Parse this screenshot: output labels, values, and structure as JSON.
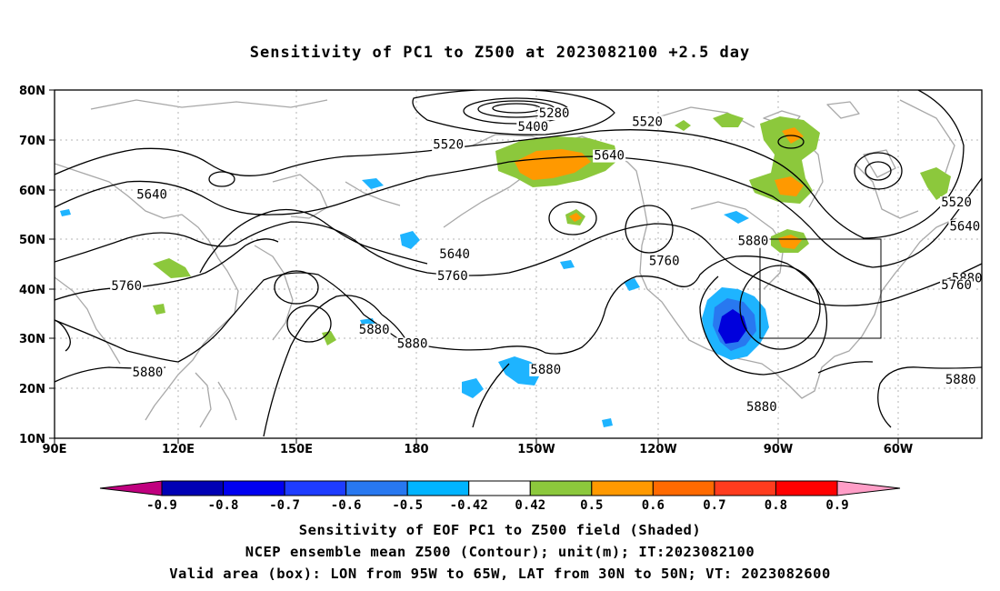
{
  "title": "Sensitivity of PC1 to Z500 at 2023082100 +2.5 day",
  "lat_labels": [
    "80N",
    "70N",
    "60N",
    "50N",
    "40N",
    "30N",
    "20N",
    "10N"
  ],
  "lon_labels": [
    "90E",
    "120E",
    "150E",
    "180",
    "150W",
    "120W",
    "90W",
    "60W"
  ],
  "contour_labels": [
    {
      "text": "5280",
      "lon": -152,
      "lat": 74.5
    },
    {
      "text": "5400",
      "lon": -157,
      "lat": 71.8
    },
    {
      "text": "5520",
      "lon": -177,
      "lat": 68.2
    },
    {
      "text": "5520",
      "lon": -130,
      "lat": 72.8
    },
    {
      "text": "5640",
      "lon": -139,
      "lat": 66.0
    },
    {
      "text": "5640",
      "lon": 113,
      "lat": 58.2
    },
    {
      "text": "5640",
      "lon": -175.5,
      "lat": 46.2
    },
    {
      "text": "5760",
      "lon": -176,
      "lat": 41.8
    },
    {
      "text": "5760",
      "lon": -126,
      "lat": 44.8
    },
    {
      "text": "5760",
      "lon": 107,
      "lat": 39.8
    },
    {
      "text": "5880",
      "lon": -105,
      "lat": 48.8
    },
    {
      "text": "5880",
      "lon": -54.5,
      "lat": 41.3
    },
    {
      "text": "5640",
      "lon": -55,
      "lat": 51.8
    },
    {
      "text": "5520",
      "lon": -57,
      "lat": 56.6
    },
    {
      "text": "5760",
      "lon": -57,
      "lat": 40.0
    },
    {
      "text": "5880",
      "lon": 165.5,
      "lat": 31.0
    },
    {
      "text": "5880",
      "lon": 174.5,
      "lat": 28.2
    },
    {
      "text": "5880",
      "lon": -154,
      "lat": 23.0
    },
    {
      "text": "5880",
      "lon": -103,
      "lat": 15.5
    },
    {
      "text": "5880",
      "lon": -56,
      "lat": 21.0
    },
    {
      "text": "5880",
      "lon": 112,
      "lat": 22.4
    }
  ],
  "colorbar": {
    "labels": [
      "-0.9",
      "-0.8",
      "-0.7",
      "-0.6",
      "-0.5",
      "-0.42",
      "0.42",
      "0.5",
      "0.6",
      "0.7",
      "0.8",
      "0.9"
    ],
    "left_triangle": "#c0007f",
    "right_triangle": "#ff9ec7",
    "colors": [
      "#0000b4",
      "#0000f0",
      "#1e3cff",
      "#2878f0",
      "#00b4ff",
      "#ffffff",
      "#8cc83c",
      "#ff9900",
      "#ff6a00",
      "#ff3c1e",
      "#ff0000"
    ]
  },
  "shading_colors": {
    "neg_light": "#1eb4ff",
    "neg_mid": "#2878f0",
    "neg_dark": "#0000dc",
    "pos_light": "#8cc83c",
    "pos_mid": "#ff9900"
  },
  "valid_box": {
    "lon_from": "95W",
    "lon_to": "65W",
    "lat_from": "30N",
    "lat_to": "50N"
  },
  "captions": [
    "Sensitivity of EOF PC1 to Z500 field (Shaded)",
    "NCEP ensemble mean Z500 (Contour); unit(m); IT:2023082100",
    "Valid area (box): LON from 95W to 65W, LAT from 30N to 50N; VT: 2023082600"
  ]
}
